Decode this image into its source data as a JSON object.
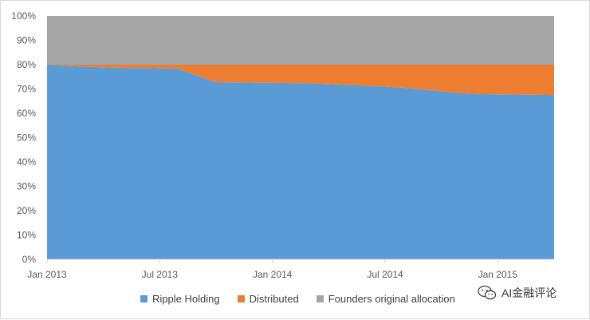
{
  "chart_data": {
    "type": "area",
    "stacked": true,
    "x_tick_labels": [
      "Jan 2013",
      "Jul 2013",
      "Jan 2014",
      "Jul 2014",
      "Jan 2015"
    ],
    "y_tick_labels": [
      "0%",
      "10%",
      "20%",
      "30%",
      "40%",
      "50%",
      "60%",
      "70%",
      "80%",
      "90%",
      "100%"
    ],
    "ylim": [
      0,
      100
    ],
    "x": [
      "Jan 2013",
      "Feb 2013",
      "Mar 2013",
      "Apr 2013",
      "May 2013",
      "Jun 2013",
      "Jul 2013",
      "Aug 2013",
      "Sep 2013",
      "Oct 2013",
      "Nov 2013",
      "Dec 2013",
      "Jan 2014",
      "Feb 2014",
      "Mar 2014",
      "Apr 2014",
      "May 2014",
      "Jun 2014",
      "Jul 2014",
      "Aug 2014",
      "Sep 2014",
      "Oct 2014",
      "Nov 2014",
      "Dec 2014",
      "Jan 2015",
      "Feb 2015",
      "Mar 2015",
      "Apr 2015"
    ],
    "series": [
      {
        "name": "Ripple Holding",
        "color": "#5b9bd5",
        "values": [
          79.9,
          79.5,
          79.2,
          78.9,
          78.7,
          78.6,
          78.5,
          78.3,
          75.5,
          72.8,
          72.7,
          72.6,
          72.5,
          72.4,
          72.3,
          72.0,
          71.7,
          71.3,
          71.0,
          70.5,
          69.8,
          69.0,
          68.3,
          67.9,
          67.8,
          67.7,
          67.6,
          67.5
        ]
      },
      {
        "name": "Distributed",
        "color": "#ed7d31",
        "values": [
          0.1,
          0.5,
          0.8,
          1.1,
          1.3,
          1.4,
          1.5,
          1.7,
          4.5,
          7.2,
          7.3,
          7.4,
          7.5,
          7.6,
          7.7,
          8.0,
          8.3,
          8.7,
          9.0,
          9.5,
          10.2,
          11.0,
          11.7,
          12.1,
          12.2,
          12.3,
          12.4,
          12.5
        ]
      },
      {
        "name": "Founders original allocation",
        "color": "#a5a5a5",
        "values": [
          20,
          20,
          20,
          20,
          20,
          20,
          20,
          20,
          20,
          20,
          20,
          20,
          20,
          20,
          20,
          20,
          20,
          20,
          20,
          20,
          20,
          20,
          20,
          20,
          20,
          20,
          20,
          20
        ]
      }
    ],
    "legend_position": "bottom",
    "grid": false
  },
  "watermark": {
    "text": "AI金融评论",
    "icon": "wechat-icon"
  }
}
